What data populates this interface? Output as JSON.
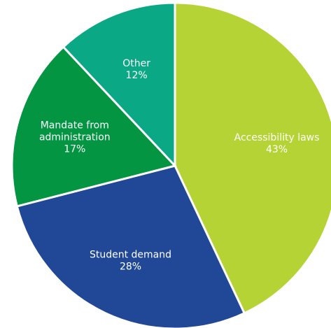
{
  "chart_data": {
    "type": "pie",
    "title": "",
    "start_angle_deg": 0,
    "direction": "clockwise",
    "slices": [
      {
        "label_lines": [
          "Accessibility laws"
        ],
        "value": 43,
        "value_label": "43%",
        "color": "#b5d334"
      },
      {
        "label_lines": [
          "Student demand"
        ],
        "value": 28,
        "value_label": "28%",
        "color": "#204896"
      },
      {
        "label_lines": [
          "Mandate from",
          "administration"
        ],
        "value": 17,
        "value_label": "17%",
        "color": "#039542"
      },
      {
        "label_lines": [
          "Other"
        ],
        "value": 12,
        "value_label": "12%",
        "color": "#0aa884"
      }
    ]
  }
}
